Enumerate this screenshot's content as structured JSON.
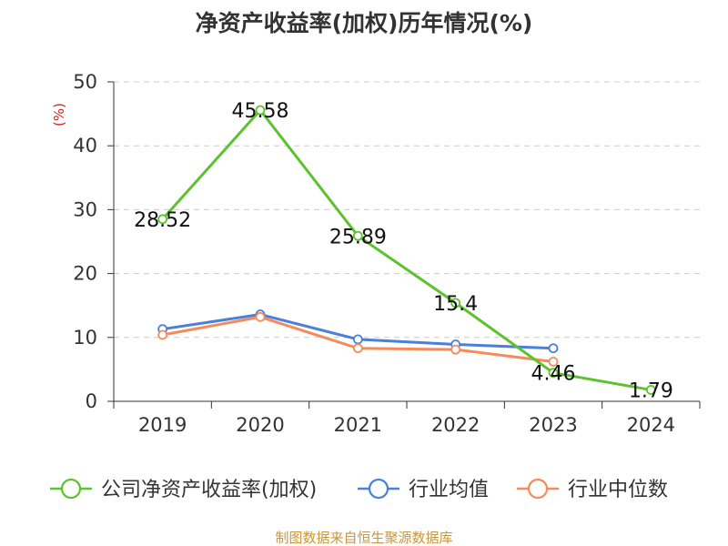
{
  "chart_data": {
    "type": "line",
    "title": "净资产收益率(加权)历年情况(%)",
    "ylabel": "(%)",
    "xlabel": "",
    "categories": [
      "2019",
      "2020",
      "2021",
      "2022",
      "2023",
      "2024"
    ],
    "ylim": [
      0,
      50
    ],
    "yticks": [
      0,
      10,
      20,
      30,
      40,
      50
    ],
    "grid": true,
    "legend_position": "bottom",
    "series": [
      {
        "name": "公司净资产收益率(加权)",
        "color": "#5cc22d",
        "values": [
          28.52,
          45.58,
          25.89,
          15.4,
          4.46,
          1.79
        ],
        "labels": [
          "28.52",
          "45.58",
          "25.89",
          "15.4",
          "4.46",
          "1.79"
        ]
      },
      {
        "name": "行业均值",
        "color": "#4a7fdb",
        "values": [
          11.3,
          13.6,
          9.7,
          8.9,
          8.3,
          null
        ]
      },
      {
        "name": "行业中位数",
        "color": "#f58b5b",
        "values": [
          10.4,
          13.2,
          8.3,
          8.1,
          6.2,
          null
        ]
      }
    ],
    "source": "制图数据来自恒生聚源数据库"
  }
}
